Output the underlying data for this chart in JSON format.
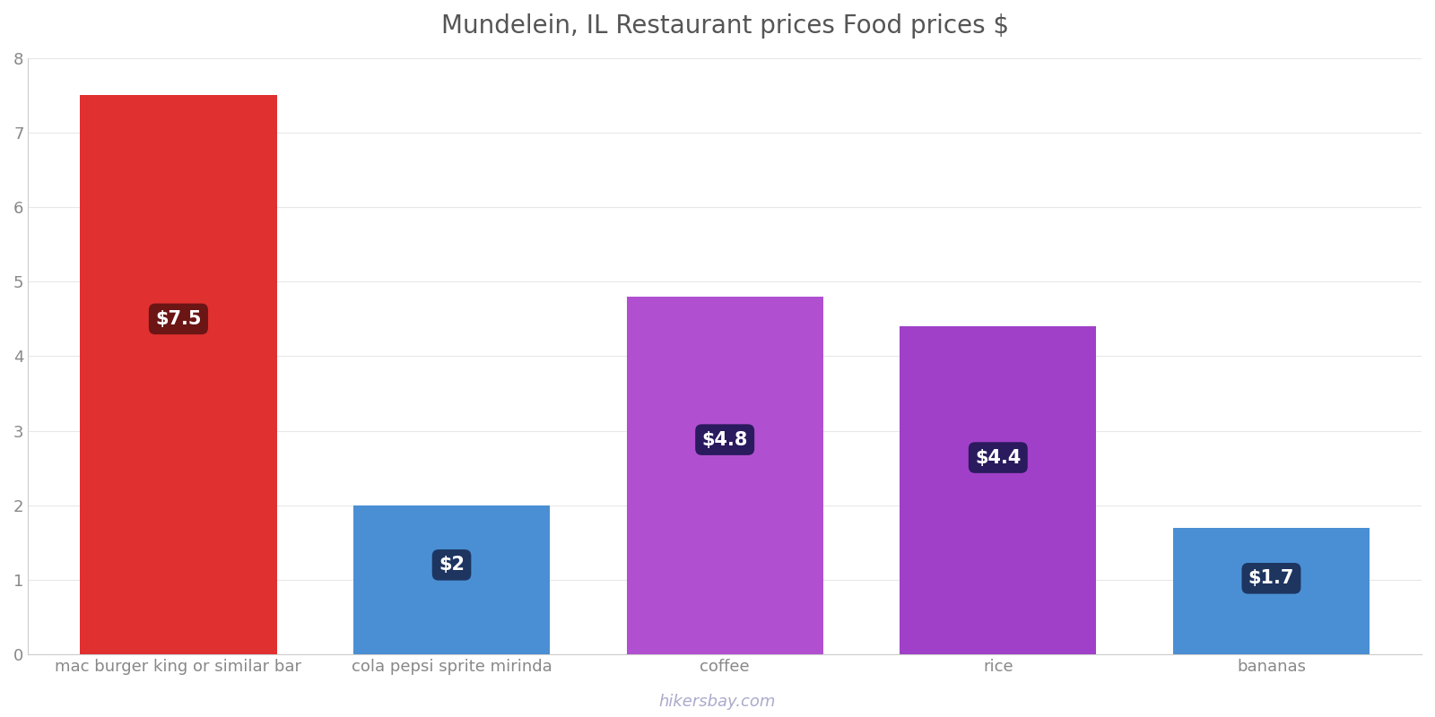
{
  "title": "Mundelein, IL Restaurant prices Food prices $",
  "categories": [
    "mac burger king or similar bar",
    "cola pepsi sprite mirinda",
    "coffee",
    "rice",
    "bananas"
  ],
  "values": [
    7.5,
    2.0,
    4.8,
    4.4,
    1.7
  ],
  "bar_colors": [
    "#e03030",
    "#4a8fd4",
    "#b050d0",
    "#a040c8",
    "#4a8fd4"
  ],
  "label_texts": [
    "$7.5",
    "$2",
    "$4.8",
    "$4.4",
    "$1.7"
  ],
  "label_box_colors": [
    "#6b1515",
    "#1e3560",
    "#2a1a5e",
    "#2a1a5e",
    "#1e3560"
  ],
  "ylim": [
    0,
    8
  ],
  "yticks": [
    0,
    1,
    2,
    3,
    4,
    5,
    6,
    7,
    8
  ],
  "title_fontsize": 20,
  "tick_fontsize": 13,
  "watermark": "hikersbay.com",
  "background_color": "#ffffff",
  "grid_color": "#e8e8e8",
  "bar_width": 0.72
}
